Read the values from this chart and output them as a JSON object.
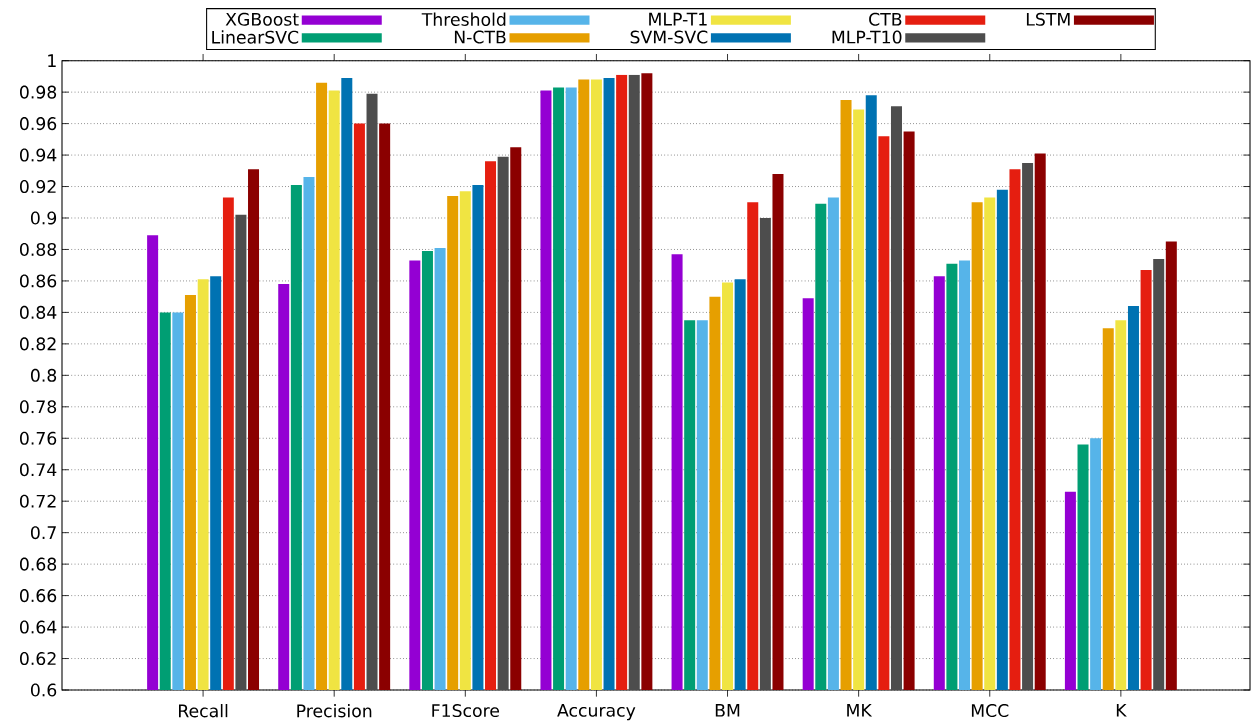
{
  "chart_data": {
    "type": "bar",
    "categories": [
      "Recall",
      "Precision",
      "F1Score",
      "Accuracy",
      "BM",
      "MK",
      "MCC",
      "K"
    ],
    "series": [
      {
        "name": "XGBoost",
        "color": "#9400d3",
        "values": [
          0.889,
          0.858,
          0.873,
          0.981,
          0.877,
          0.849,
          0.863,
          0.726
        ]
      },
      {
        "name": "LinearSVC",
        "color": "#009e73",
        "values": [
          0.84,
          0.921,
          0.879,
          0.983,
          0.835,
          0.909,
          0.871,
          0.756
        ]
      },
      {
        "name": "Threshold",
        "color": "#56b4e9",
        "values": [
          0.84,
          0.926,
          0.881,
          0.983,
          0.835,
          0.913,
          0.873,
          0.76
        ]
      },
      {
        "name": "N-CTB",
        "color": "#e69f00",
        "values": [
          0.851,
          0.986,
          0.914,
          0.988,
          0.85,
          0.975,
          0.91,
          0.83
        ]
      },
      {
        "name": "MLP-T1",
        "color": "#f0e442",
        "values": [
          0.861,
          0.981,
          0.917,
          0.988,
          0.859,
          0.969,
          0.913,
          0.835
        ]
      },
      {
        "name": "SVM-SVC",
        "color": "#0072b2",
        "values": [
          0.863,
          0.989,
          0.921,
          0.989,
          0.861,
          0.978,
          0.918,
          0.844
        ]
      },
      {
        "name": "CTB",
        "color": "#e51e10",
        "values": [
          0.913,
          0.96,
          0.936,
          0.991,
          0.91,
          0.952,
          0.931,
          0.867
        ]
      },
      {
        "name": "MLP-T10",
        "color": "#4d4d4d",
        "values": [
          0.902,
          0.979,
          0.939,
          0.991,
          0.9,
          0.971,
          0.935,
          0.874
        ]
      },
      {
        "name": "LSTM",
        "color": "#8b0000",
        "values": [
          0.931,
          0.96,
          0.945,
          0.992,
          0.928,
          0.955,
          0.941,
          0.885
        ]
      }
    ],
    "ylim": [
      0.6,
      1
    ],
    "yticks": [
      0.6,
      0.62,
      0.64,
      0.66,
      0.68,
      0.7,
      0.72,
      0.74,
      0.76,
      0.78,
      0.8,
      0.82,
      0.84,
      0.86,
      0.88,
      0.9,
      0.92,
      0.94,
      0.96,
      0.98,
      1
    ],
    "grid": "y",
    "legend": "top"
  }
}
